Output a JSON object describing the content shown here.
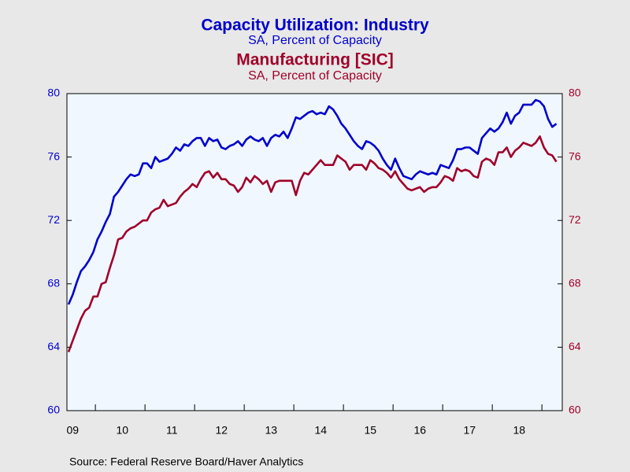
{
  "chart_data": {
    "type": "line",
    "source": "Source:  Federal Reserve Board/Haver Analytics",
    "categories": [
      null,
      "09",
      null,
      null,
      null,
      null,
      null,
      null,
      null,
      null,
      null,
      null,
      null,
      "10",
      null,
      null,
      null,
      null,
      null,
      null,
      null,
      null,
      null,
      null,
      null,
      "11",
      null,
      null,
      null,
      null,
      null,
      null,
      null,
      null,
      null,
      null,
      null,
      "12",
      null,
      null,
      null,
      null,
      null,
      null,
      null,
      null,
      null,
      null,
      null,
      "13",
      null,
      null,
      null,
      null,
      null,
      null,
      null,
      null,
      null,
      null,
      null,
      "14",
      null,
      null,
      null,
      null,
      null,
      null,
      null,
      null,
      null,
      null,
      null,
      "15",
      null,
      null,
      null,
      null,
      null,
      null,
      null,
      null,
      null,
      null,
      null,
      "16",
      null,
      null,
      null,
      null,
      null,
      null,
      null,
      null,
      null,
      null,
      null,
      "17",
      null,
      null,
      null,
      null,
      null,
      null,
      null,
      null,
      null,
      null,
      null,
      "18",
      null,
      null,
      null,
      null,
      null,
      null,
      null,
      null,
      null
    ],
    "series": [
      {
        "name": "Capacity Utilization: Industry",
        "subtitle": "SA, Percent of Capacity",
        "color": "#0000cc",
        "axis": "y",
        "values": [
          66.7,
          67.3,
          68.1,
          68.8,
          69.1,
          69.5,
          70.0,
          70.8,
          71.3,
          71.9,
          72.4,
          73.5,
          73.8,
          74.2,
          74.6,
          74.9,
          74.8,
          74.9,
          75.6,
          75.6,
          75.3,
          76.0,
          75.7,
          75.8,
          75.9,
          76.2,
          76.6,
          76.4,
          76.8,
          76.7,
          77.0,
          77.2,
          77.2,
          76.7,
          77.2,
          77.0,
          77.1,
          76.6,
          76.5,
          76.7,
          76.8,
          77.0,
          76.7,
          77.1,
          77.3,
          77.1,
          77.0,
          77.2,
          76.7,
          77.2,
          77.4,
          77.3,
          77.6,
          77.2,
          77.8,
          78.5,
          78.4,
          78.6,
          78.8,
          78.9,
          78.7,
          78.8,
          78.7,
          79.2,
          79.0,
          78.6,
          78.1,
          77.8,
          77.4,
          77.0,
          76.7,
          76.5,
          77.0,
          76.9,
          76.7,
          76.4,
          75.9,
          75.5,
          75.2,
          75.9,
          75.3,
          74.8,
          74.7,
          74.6,
          74.9,
          75.1,
          75.0,
          74.9,
          75.0,
          74.9,
          75.5,
          75.4,
          75.3,
          75.8,
          76.5,
          76.5,
          76.6,
          76.6,
          76.4,
          76.2,
          77.2,
          77.5,
          77.8,
          77.6,
          77.8,
          78.2,
          78.8,
          78.1,
          78.6,
          78.8,
          79.3,
          79.3,
          79.3,
          79.6,
          79.5,
          79.2,
          78.4,
          77.9,
          78.1
        ]
      },
      {
        "name": "Manufacturing [SIC]",
        "subtitle": "SA, Percent of Capacity",
        "color": "#a0002a",
        "axis": "y2",
        "values": [
          63.7,
          64.4,
          65.1,
          65.8,
          66.3,
          66.5,
          67.2,
          67.2,
          68.0,
          68.1,
          69.0,
          69.8,
          70.8,
          70.9,
          71.3,
          71.5,
          71.6,
          71.8,
          72.0,
          72.0,
          72.5,
          72.7,
          72.8,
          73.3,
          72.9,
          73.0,
          73.1,
          73.5,
          73.8,
          74.0,
          74.3,
          74.1,
          74.6,
          75.0,
          75.1,
          74.7,
          75.0,
          74.6,
          74.6,
          74.3,
          74.2,
          73.8,
          74.1,
          74.7,
          74.4,
          74.8,
          74.6,
          74.3,
          74.5,
          73.8,
          74.4,
          74.5,
          74.5,
          74.5,
          74.5,
          73.6,
          74.5,
          75.0,
          74.9,
          75.2,
          75.5,
          75.8,
          75.5,
          75.5,
          75.5,
          76.1,
          75.9,
          75.7,
          75.2,
          75.5,
          75.5,
          75.5,
          75.2,
          75.8,
          75.6,
          75.3,
          75.2,
          75.0,
          74.7,
          75.1,
          74.6,
          74.3,
          74.0,
          73.9,
          74.0,
          74.1,
          73.8,
          74.0,
          74.1,
          74.1,
          74.4,
          74.8,
          74.7,
          74.5,
          75.3,
          75.1,
          75.2,
          75.1,
          74.8,
          74.7,
          75.7,
          75.9,
          75.8,
          75.5,
          76.3,
          76.3,
          76.6,
          76.0,
          76.4,
          76.6,
          76.9,
          76.8,
          76.7,
          76.9,
          77.3,
          76.6,
          76.2,
          76.1,
          75.7
        ]
      }
    ],
    "ylim": [
      60,
      80
    ],
    "yticks": [
      60,
      64,
      68,
      72,
      76,
      80
    ],
    "y2lim": [
      60,
      80
    ],
    "y2ticks": [
      60,
      64,
      68,
      72,
      76,
      80
    ],
    "grid": false
  }
}
